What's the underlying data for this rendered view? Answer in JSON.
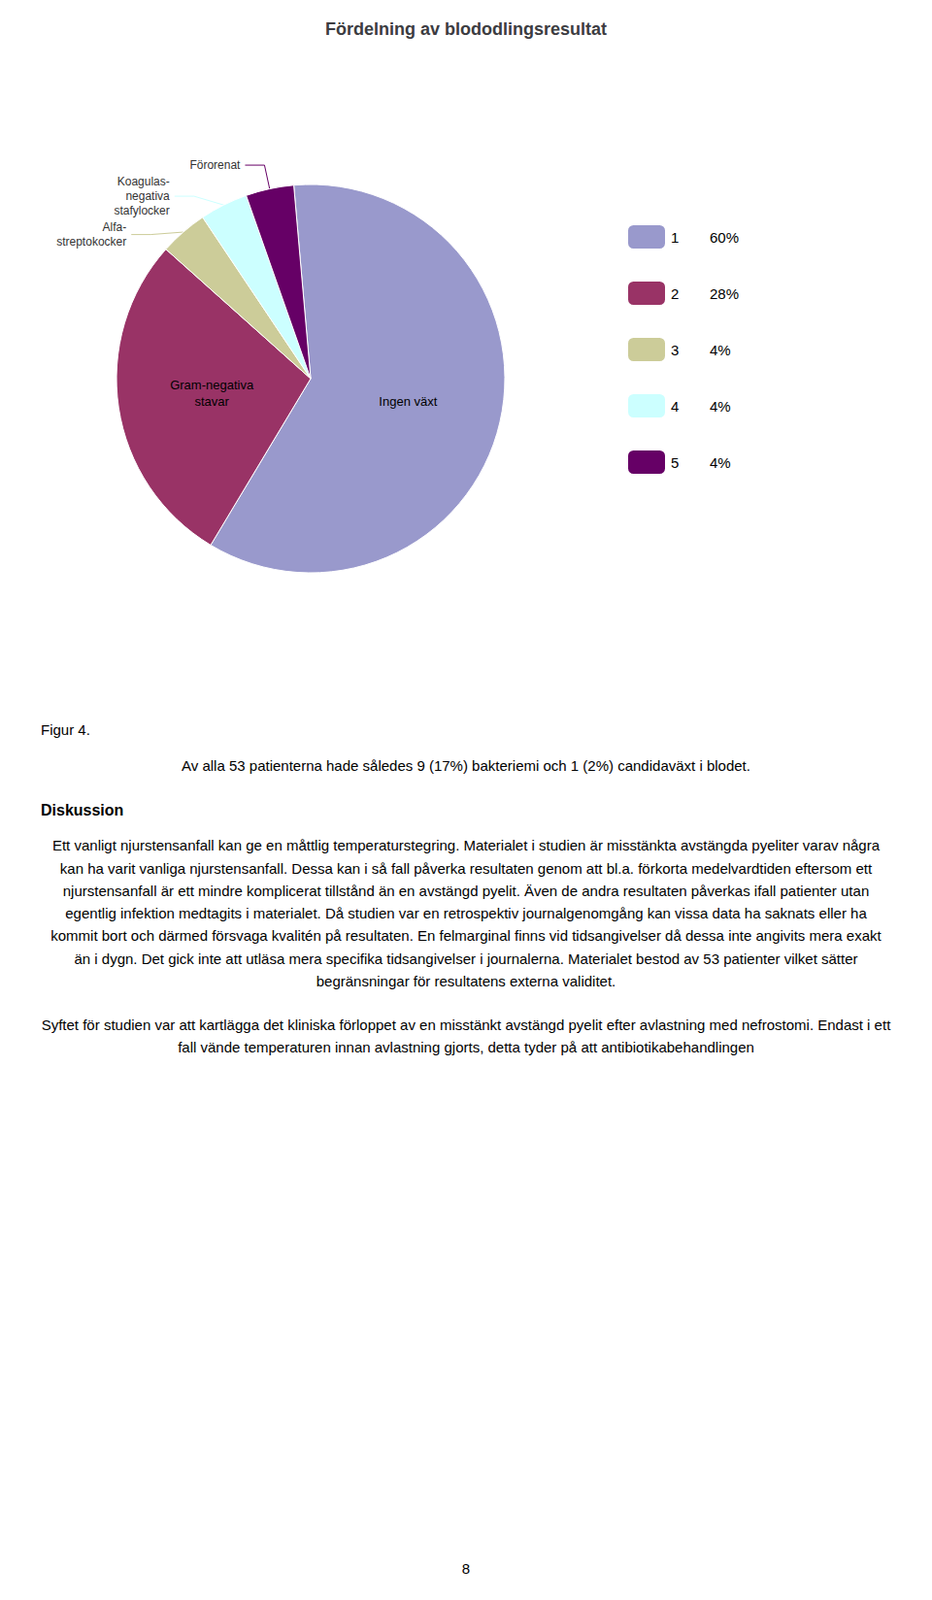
{
  "chart_data": {
    "type": "pie",
    "title": "Fördelning av blododlingsresultat",
    "categories": [
      "1",
      "2",
      "3",
      "4",
      "5"
    ],
    "values": [
      60,
      28,
      4,
      4,
      4
    ],
    "value_labels": [
      "60%",
      "28%",
      "4%",
      "4%",
      "4%"
    ],
    "colors": [
      "#9999cc",
      "#993366",
      "#cccc99",
      "#ccffff",
      "#660066"
    ],
    "annotations": [
      "Ingen växt",
      "Gram-negativa\nstavar",
      "Alfa-\nstreptokocker",
      "Koagulas-\nnegativa\nstafylocker",
      "Förorenat"
    ],
    "legend": "right"
  },
  "text_body": {
    "caption": "Figur 4.",
    "paragraph1": "Av alla 53 patienterna hade således 9 (17%) bakteriemi och 1 (2%) candidaväxt i blodet.",
    "heading": "Diskussion",
    "paragraph2": "Ett vanligt njurstensanfall kan ge en måttlig temperaturstegring. Materialet i studien är misstänkta avstängda pyeliter varav några kan ha varit vanliga njurstensanfall. Dessa kan i så fall påverka resultaten genom att bl.a. förkorta medelvard­tiden eftersom ett njurstensanfall är ett mindre komplicerat tillstånd än en avstängd pyelit. Även de andra resultaten påverkas ifall patienter utan egentlig infektion medtagits i materialet. Då studien var en retrospektiv journalgenomgång kan vissa data ha saknats eller ha kommit bort och därmed försvaga kvalitén på resultaten. En felmarginal finns vid tidsangivelser då dessa inte angivits mera exakt än i dygn. Det gick inte att utläsa mera specifika tidsangivelser i journalerna. Materialet bestod av 53 patienter vilket sätter begränsningar för resultatens externa validitet.",
    "paragraph3": "Syftet för studien var att kartlägga det kliniska förloppet av en misstänkt avstängd pyelit efter avlastning med nefrostomi. Endast i ett fall vände temperaturen innan avlastning gjorts, detta tyder på att antibiotikabehandlingen",
    "page_number": "8"
  }
}
